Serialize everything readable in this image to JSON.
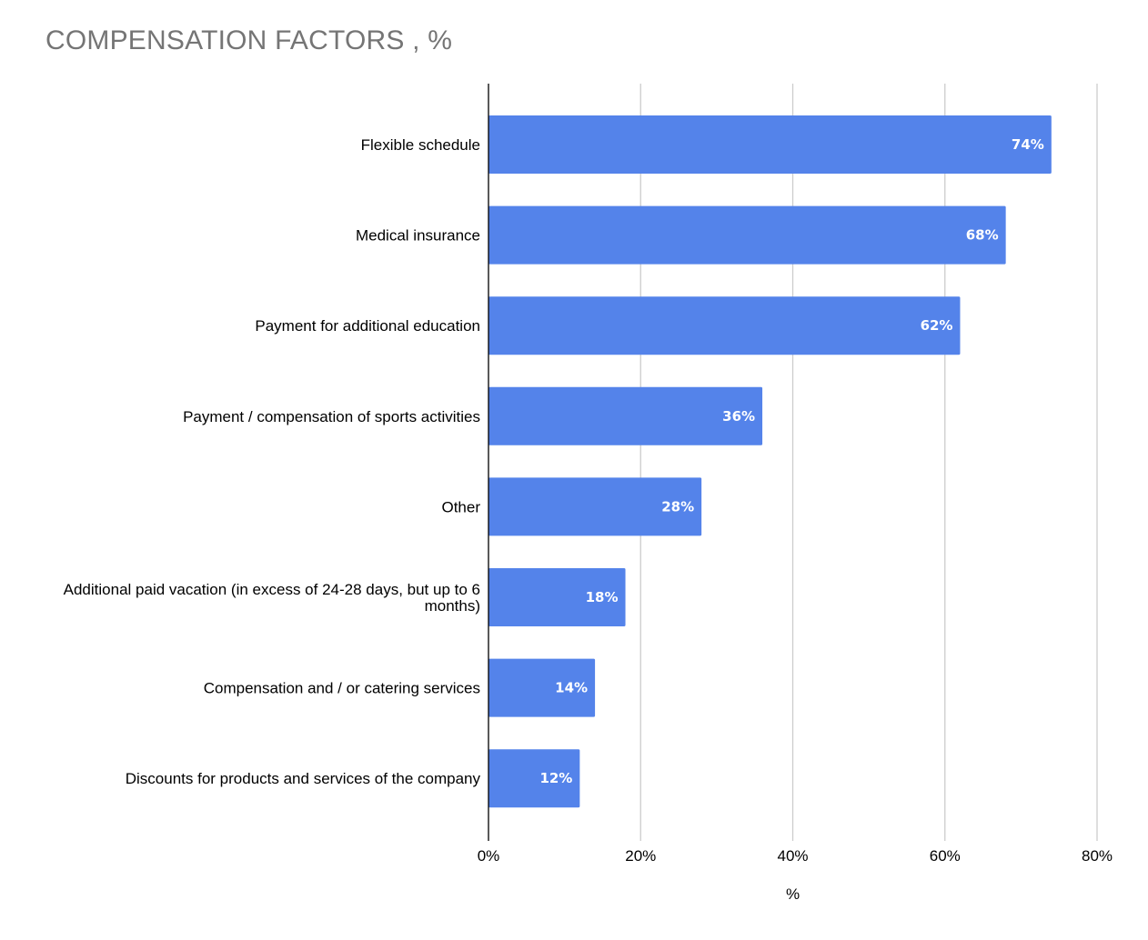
{
  "chart_data": {
    "type": "bar",
    "orientation": "horizontal",
    "title": "COMPENSATION FACTORS , %",
    "xlabel": "%",
    "ylabel": "",
    "categories": [
      "Flexible schedule",
      "Medical insurance",
      "Payment for additional education",
      "Payment / compensation of sports activities",
      "Other",
      "Additional paid vacation (in excess of 24-28 days, but up to 6 months)",
      "Compensation and / or catering services",
      "Discounts for products and services of the company"
    ],
    "values": [
      74,
      68,
      62,
      36,
      28,
      18,
      14,
      12
    ],
    "data_labels": [
      "74%",
      "68%",
      "62%",
      "36%",
      "28%",
      "18%",
      "14%",
      "12%"
    ],
    "xlim": [
      0,
      80
    ],
    "x_ticks": [
      0,
      20,
      40,
      60,
      80
    ],
    "x_tick_labels": [
      "0%",
      "20%",
      "40%",
      "60%",
      "80%"
    ],
    "grid": true,
    "bar_color": "#5483EA",
    "grid_color": "#cccccc",
    "title_color": "#757575"
  }
}
